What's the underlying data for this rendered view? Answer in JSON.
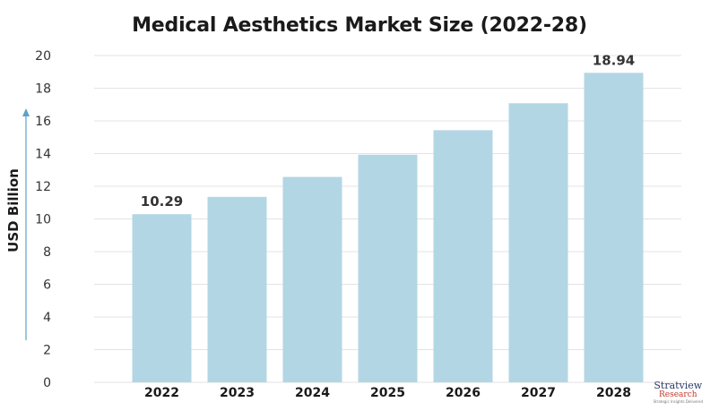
{
  "chart_data": {
    "type": "bar",
    "title": "Medical Aesthetics Market Size (2022-28)",
    "ylabel": "USD Billion",
    "xlabel": "",
    "categories": [
      "2022",
      "2023",
      "2024",
      "2025",
      "2026",
      "2027",
      "2028"
    ],
    "values": [
      10.29,
      11.35,
      12.57,
      13.93,
      15.43,
      17.08,
      18.94
    ],
    "data_labels": {
      "2022": "10.29",
      "2028": "18.94"
    },
    "ylim": [
      0,
      20
    ],
    "yticks": [
      0,
      2,
      4,
      6,
      8,
      10,
      12,
      14,
      16,
      18,
      20
    ],
    "grid": true,
    "colors": {
      "bar": "#b3d6e4",
      "grid": "#e3e3e3",
      "axis_arrow": "#5aa3c8",
      "text": "#333333"
    }
  },
  "logo": {
    "name": "Stratview",
    "sub": "Research",
    "tagline": "Strategic Insights Delivered"
  }
}
